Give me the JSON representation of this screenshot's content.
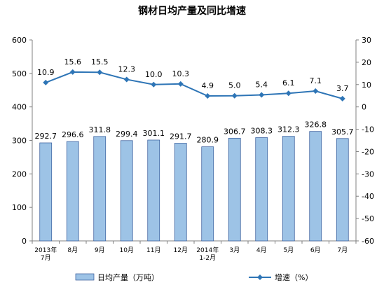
{
  "chart_data": {
    "type": "bar",
    "title": "钢材日均产量及同比增速",
    "categories": [
      [
        "2013年",
        "7月"
      ],
      [
        "8月"
      ],
      [
        "9月"
      ],
      [
        "10月"
      ],
      [
        "11月"
      ],
      [
        "12月"
      ],
      [
        "2014年",
        "1-2月"
      ],
      [
        "3月"
      ],
      [
        "4月"
      ],
      [
        "5月"
      ],
      [
        "6月"
      ],
      [
        "7月"
      ]
    ],
    "series": [
      {
        "name": "日均产量（万吨）",
        "type": "bar",
        "axis": "left",
        "color": "#9DC3E6",
        "values": [
          292.7,
          296.6,
          311.8,
          299.4,
          301.1,
          291.7,
          280.9,
          306.7,
          308.3,
          312.3,
          326.8,
          305.7
        ],
        "labels": [
          "292.7",
          "296.6",
          "311.8",
          "299.4",
          "301.1",
          "291.7",
          "280.9",
          "306.7",
          "308.3",
          "312.3",
          "326.8",
          "305.7"
        ]
      },
      {
        "name": "增速（%）",
        "type": "line",
        "axis": "right",
        "color": "#2E75B6",
        "values": [
          10.9,
          15.6,
          15.5,
          12.3,
          10.0,
          10.3,
          4.9,
          5.0,
          5.4,
          6.1,
          7.1,
          3.7
        ],
        "labels": [
          "10.9",
          "15.6",
          "15.5",
          "12.3",
          "10.0",
          "10.3",
          "4.9",
          "5.0",
          "5.4",
          "6.1",
          "7.1",
          "3.7"
        ]
      }
    ],
    "y_left": {
      "lim": [
        0,
        600
      ],
      "ticks": [
        "0",
        "100",
        "200",
        "300",
        "400",
        "500",
        "600"
      ]
    },
    "y_right": {
      "lim": [
        -60,
        30
      ],
      "ticks": [
        "-60",
        "-50",
        "-40",
        "-30",
        "-20",
        "-10",
        "0",
        "10",
        "20",
        "30"
      ]
    },
    "grid": false,
    "legend": "bottom"
  }
}
